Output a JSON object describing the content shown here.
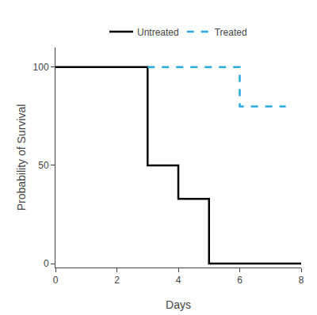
{
  "chart_data": {
    "type": "line",
    "xlabel": "Days",
    "ylabel": "Probability of Survival",
    "series": [
      {
        "name": "Untreated",
        "color": "#000000",
        "line_style": "solid",
        "x": [
          0,
          3,
          3,
          4,
          4,
          5,
          5,
          8
        ],
        "values": [
          100,
          100,
          50,
          50,
          33,
          33,
          0,
          0
        ]
      },
      {
        "name": "Treated",
        "color": "#29ABE2",
        "line_style": "dashed",
        "x": [
          3,
          6,
          6,
          7.5
        ],
        "values": [
          100,
          100,
          80,
          80
        ]
      }
    ],
    "xlim": [
      0,
      8
    ],
    "ylim": [
      -2,
      110
    ],
    "xticks": [
      0,
      2,
      4,
      6,
      8
    ],
    "yticks": [
      0,
      50,
      100
    ],
    "grid": false,
    "legend": "top"
  }
}
